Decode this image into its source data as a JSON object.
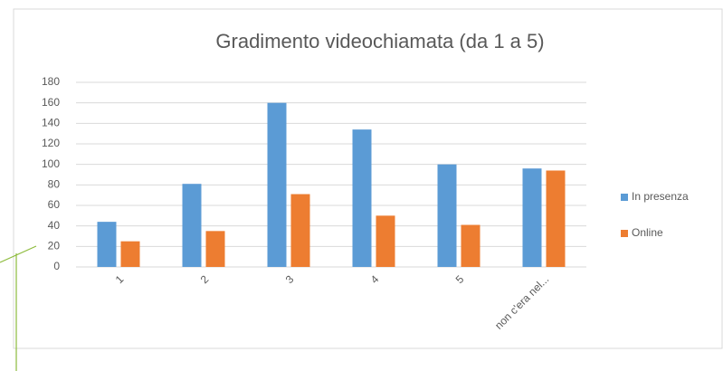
{
  "chart_data": {
    "type": "bar",
    "title": "Gradimento videochiamata (da 1 a 5)",
    "categories": [
      "1",
      "2",
      "3",
      "4",
      "5",
      "non c'era nel..."
    ],
    "series": [
      {
        "name": "In presenza",
        "color": "#5b9bd5",
        "values": [
          44,
          81,
          160,
          134,
          100,
          96
        ]
      },
      {
        "name": "Online",
        "color": "#ed7d31",
        "values": [
          25,
          35,
          71,
          50,
          41,
          94
        ]
      }
    ],
    "ylim": [
      0,
      180
    ],
    "yticks": [
      0,
      20,
      40,
      60,
      80,
      100,
      120,
      140,
      160,
      180
    ],
    "grid": true,
    "legend": "right"
  }
}
